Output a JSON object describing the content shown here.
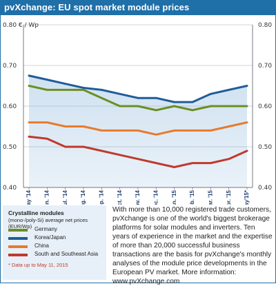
{
  "title": "pvXchange: EU spot market module prices",
  "chart_data": {
    "type": "line",
    "ylabel": "€ / Wp",
    "ylim": [
      0.4,
      0.8
    ],
    "y_ticks": [
      "0.80 € / Wp",
      "0.70",
      "0.60",
      "0.50",
      "0.40"
    ],
    "y_ticks_right": [
      "0.80",
      "0.70",
      "0.60",
      "0.50",
      "0.40"
    ],
    "categories": [
      "May '14",
      "Jun. '14",
      "Jul. '14",
      "Aug. '14",
      "Sep. '14",
      "Oct. '14",
      "Nov. '14",
      "Dec. '14",
      "Jan. '15",
      "Feb. '15",
      "Mar. '15",
      "Apr. '15",
      "May'15*"
    ],
    "grid": "horizontal",
    "series": [
      {
        "name": "Germany",
        "color": "#6b8e23",
        "values": [
          0.65,
          0.64,
          0.64,
          0.64,
          0.62,
          0.6,
          0.6,
          0.59,
          0.6,
          0.59,
          0.6,
          0.6,
          0.6
        ]
      },
      {
        "name": "Korea/Japan",
        "color": "#1f5c99",
        "values": [
          0.675,
          0.665,
          0.655,
          0.645,
          0.64,
          0.63,
          0.62,
          0.62,
          0.61,
          0.61,
          0.63,
          0.64,
          0.65
        ]
      },
      {
        "name": "China",
        "color": "#e97a2b",
        "values": [
          0.56,
          0.56,
          0.55,
          0.55,
          0.54,
          0.54,
          0.54,
          0.53,
          0.54,
          0.54,
          0.54,
          0.55,
          0.56
        ]
      },
      {
        "name": "South and Southeast Asia",
        "color": "#c0392b",
        "values": [
          0.525,
          0.52,
          0.5,
          0.5,
          0.49,
          0.48,
          0.47,
          0.46,
          0.45,
          0.46,
          0.46,
          0.47,
          0.49
        ]
      }
    ]
  },
  "legend": {
    "title": "Crystalline modules",
    "subtitle": "(mono-/poly-Si) average net prices (EUR/Wp)",
    "footnote": "* Data up to May 11, 2015"
  },
  "description": "With more than 10,000 registered trade customers, pvXchange is one of the world's biggest brokerage platforms for solar modules and inverters. Ten years of experience in the market and the expertise of more than 20,000 successful business transactions are the basis for pvXchange's monthly analyses of the module price developments in the European PV market. More information: www.pvXchange.com"
}
